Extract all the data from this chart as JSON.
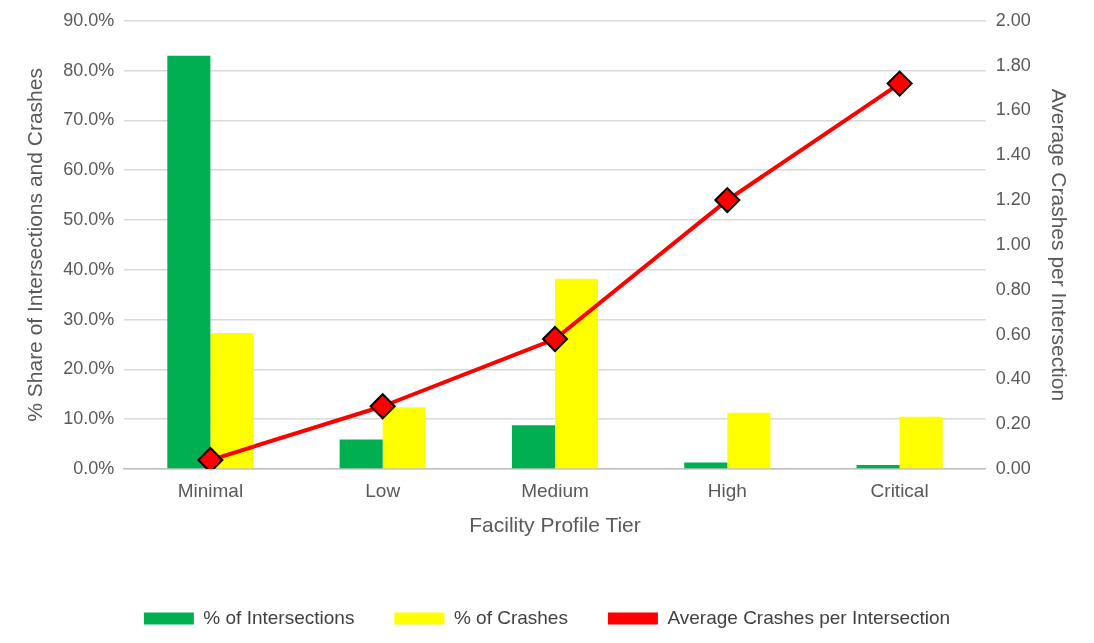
{
  "chart_data": {
    "type": "bar",
    "xlabel": "Facility Profile Tier",
    "ylabel": "% Share of Intersections and Crashes",
    "y2label": "Average Crashes per Intersection",
    "categories": [
      "Minimal",
      "Low",
      "Medium",
      "High",
      "Critical"
    ],
    "series": [
      {
        "name": "% of Intersections",
        "color": "#00b050",
        "values": [
          83.0,
          5.9,
          8.8,
          1.3,
          0.8
        ]
      },
      {
        "name": "% of Crashes",
        "color": "#ffff00",
        "values": [
          27.3,
          12.4,
          38.2,
          11.3,
          10.5
        ]
      },
      {
        "name": "Average Crashes per Intersection",
        "type": "line",
        "axis": "y2",
        "color": "#ff0000",
        "marker": "diamond",
        "values": [
          0.04,
          0.28,
          0.58,
          1.2,
          1.72
        ]
      }
    ],
    "ylim": [
      0,
      90
    ],
    "yticks": [
      {
        "value": 0,
        "label": "0.0%"
      },
      {
        "value": 10,
        "label": "10.0%"
      },
      {
        "value": 20,
        "label": "20.0%"
      },
      {
        "value": 30,
        "label": "30.0%"
      },
      {
        "value": 40,
        "label": "40.0%"
      },
      {
        "value": 50,
        "label": "50.0%"
      },
      {
        "value": 60,
        "label": "60.0%"
      },
      {
        "value": 70,
        "label": "70.0%"
      },
      {
        "value": 80,
        "label": "80.0%"
      },
      {
        "value": 90,
        "label": "90.0%"
      }
    ],
    "y2lim": [
      0,
      2
    ],
    "y2ticks": [
      {
        "value": 0,
        "label": "0.00"
      },
      {
        "value": 0.2,
        "label": "0.20"
      },
      {
        "value": 0.4,
        "label": "0.40"
      },
      {
        "value": 0.6,
        "label": "0.60"
      },
      {
        "value": 0.8,
        "label": "0.80"
      },
      {
        "value": 1,
        "label": "1.00"
      },
      {
        "value": 1.2,
        "label": "1.20"
      },
      {
        "value": 1.4,
        "label": "1.40"
      },
      {
        "value": 1.6,
        "label": "1.60"
      },
      {
        "value": 1.8,
        "label": "1.80"
      },
      {
        "value": 2,
        "label": "2.00"
      }
    ],
    "grid": "y",
    "legend": "bottom"
  }
}
